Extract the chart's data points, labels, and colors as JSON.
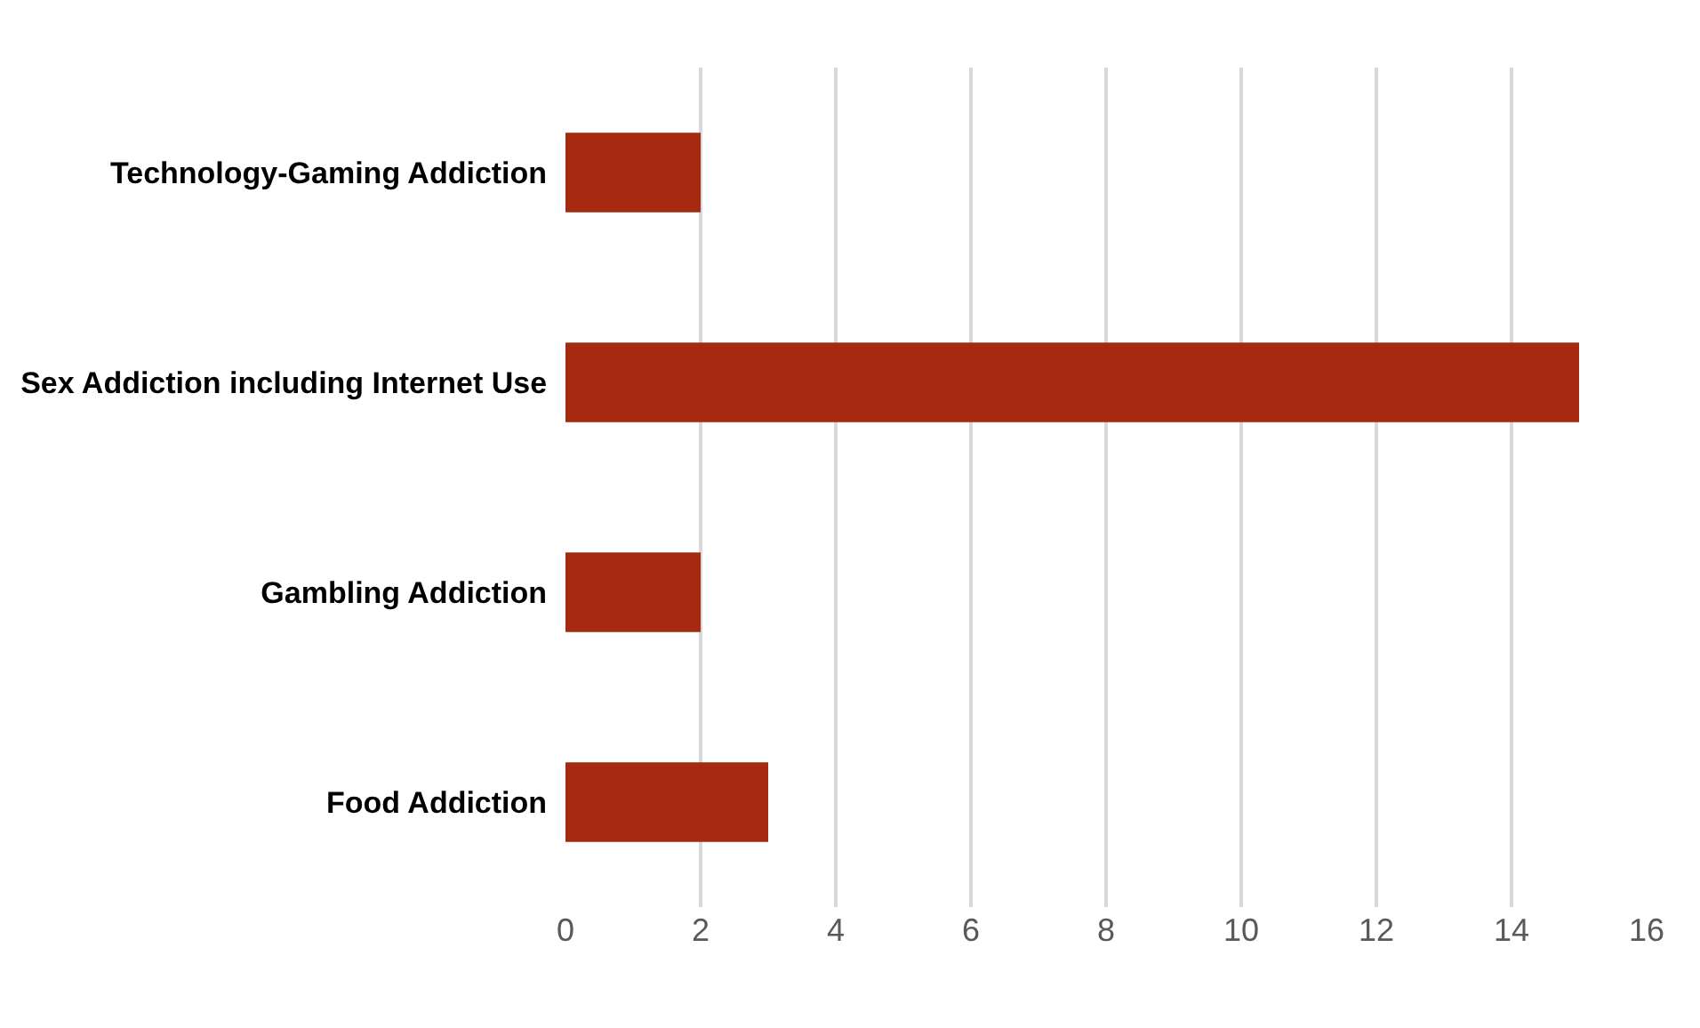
{
  "chart_data": {
    "type": "bar",
    "orientation": "horizontal",
    "categories": [
      "Technology-Gaming Addiction",
      "Sex Addiction including Internet Use",
      "Gambling Addiction",
      "Food Addiction"
    ],
    "values": [
      2,
      15,
      2,
      3
    ],
    "color": "#a52a10",
    "xlim": [
      0,
      16
    ],
    "xticks": [
      0,
      2,
      4,
      6,
      8,
      10,
      12,
      14,
      16
    ],
    "grid": "x"
  }
}
